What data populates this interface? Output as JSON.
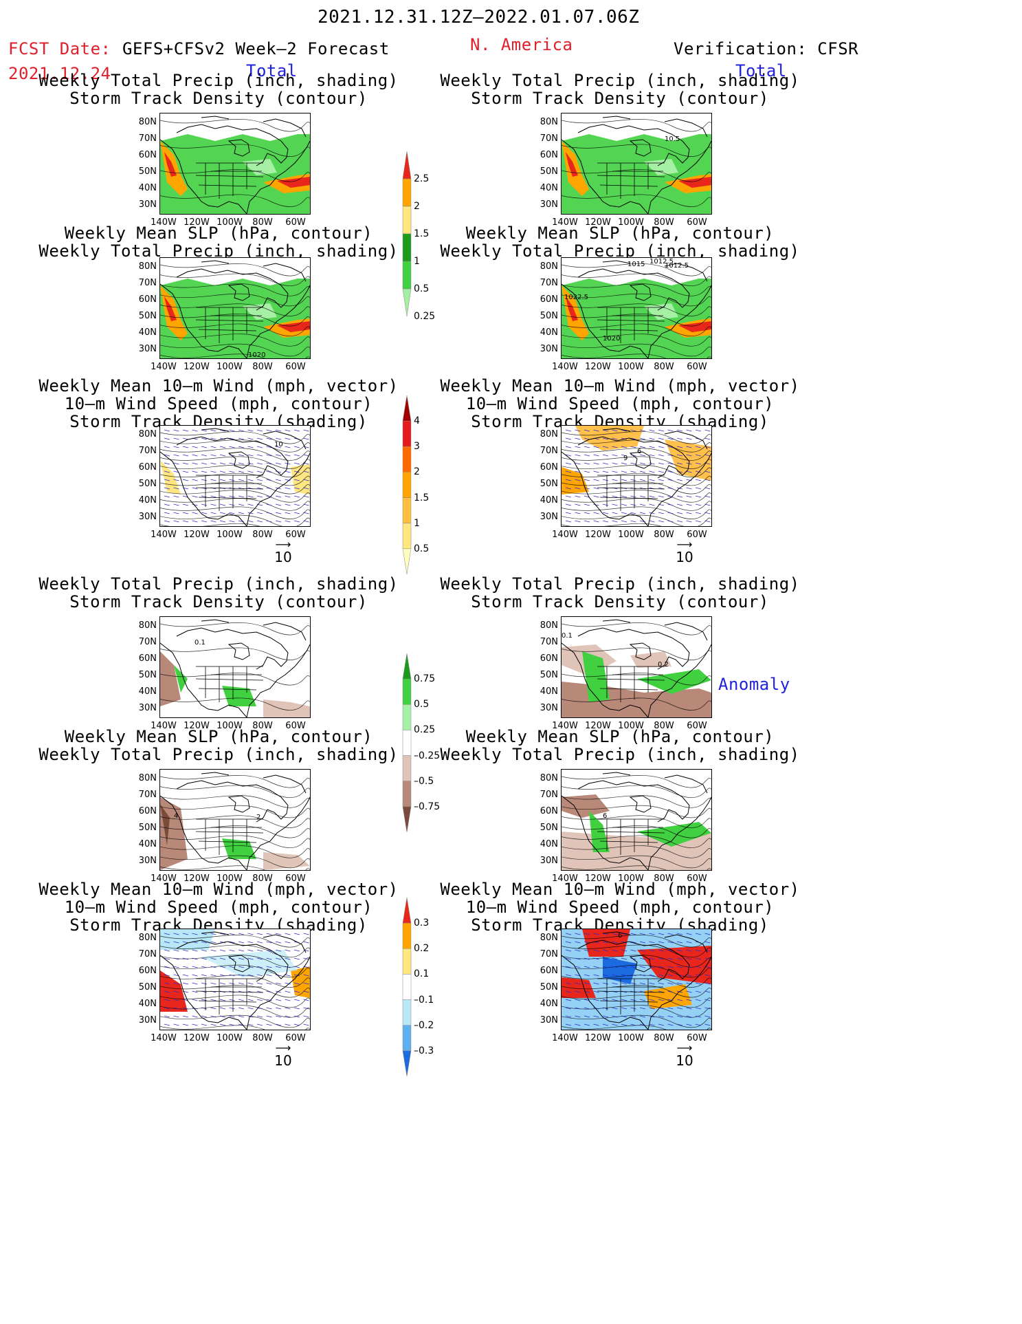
{
  "header": {
    "period": "2021.12.31.12Z–2022.01.07.06Z",
    "fcst_label": "FCST Date:",
    "fcst_date": "2021.12.24",
    "model": "GEFS+CFSv2 Week–2 Forecast",
    "region": "N. America",
    "verification": "Verification: CFSR"
  },
  "sections": {
    "total": "Total",
    "anomaly": "Anomaly"
  },
  "panel_titles": {
    "precip_storm": [
      "Weekly Total Precip (inch, shading)",
      "Storm Track Density (contour)"
    ],
    "slp_precip": [
      "Weekly Mean SLP (hPa, contour)",
      "Weekly Total Precip (inch, shading)"
    ],
    "wind_storm": [
      "Weekly Mean 10–m Wind (mph, vector)",
      "10–m Wind Speed (mph, contour)",
      "Storm Track Density (shading)"
    ]
  },
  "axes": {
    "lat_labels": [
      "80N",
      "70N",
      "60N",
      "50N",
      "40N",
      "30N"
    ],
    "lon_labels": [
      "140W",
      "120W",
      "100W",
      "80W",
      "60W"
    ]
  },
  "vector_ref": "10",
  "colorbars": {
    "precip_total": {
      "labels": [
        "2.5",
        "2",
        "1.5",
        "1",
        "0.5",
        "0.25"
      ],
      "colors": [
        "#e8261c",
        "#ffa500",
        "#ffe680",
        "#1c9a1c",
        "#40d040",
        "#a6f0a6"
      ]
    },
    "storm_total": {
      "labels": [
        "4",
        "3",
        "2",
        "1.5",
        "1",
        "0.5"
      ],
      "colors": [
        "#a00000",
        "#e41a1c",
        "#ff6a00",
        "#ffa500",
        "#ffc040",
        "#ffe680",
        "#fffcc0"
      ]
    },
    "precip_anom": {
      "labels": [
        "0.75",
        "0.5",
        "0.25",
        "–0.25",
        "–0.5",
        "–0.75"
      ],
      "colors": [
        "#1c9a1c",
        "#40d040",
        "#a6f0a6",
        "#ffffff",
        "#e0c4b8",
        "#b88878",
        "#7a4a3a"
      ]
    },
    "storm_anom": {
      "labels": [
        "0.3",
        "0.2",
        "0.1",
        "–0.1",
        "–0.2",
        "–0.3"
      ],
      "colors": [
        "#e8261c",
        "#ffa500",
        "#ffe680",
        "#ffffff",
        "#b8e8f8",
        "#60b0f0",
        "#1c6ae0"
      ]
    }
  },
  "map_labels": {
    "v_total_precip": "10.5",
    "v_total_slp_1": "1015",
    "v_total_slp_2": "1012.5",
    "v_total_slp_3": "1012.5",
    "v_total_slp_4": "1022.5",
    "v_total_slp_5": "1020",
    "f_total_slp": "1020",
    "f_total_wind": "10",
    "v_total_wind_1": "6",
    "v_total_wind_2": "9",
    "v_anom_precip_1": "0.1",
    "v_anom_precip_2": "0.2",
    "f_anom_precip": "0.1",
    "f_anom_slp_1": "4",
    "f_anom_slp_2": "2",
    "v_anom_slp": "6",
    "v_anom_wind": "6"
  }
}
